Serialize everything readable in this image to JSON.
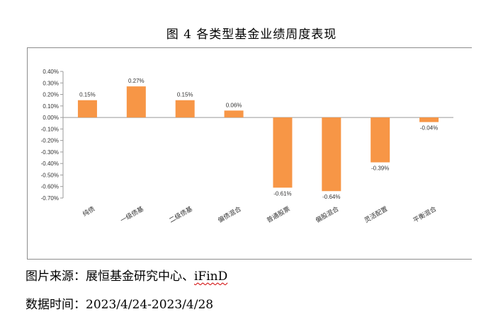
{
  "figure": {
    "title": "图 4  各类型基金业绩周度表现"
  },
  "chart_data": {
    "type": "bar",
    "title": "图 4  各类型基金业绩周度表现",
    "xlabel": "",
    "ylabel": "",
    "categories": [
      "纯债",
      "一级债基",
      "二级债基",
      "偏债混合",
      "普通股票",
      "偏股混合",
      "灵活配置",
      "平衡混合"
    ],
    "values": [
      0.15,
      0.27,
      0.15,
      0.06,
      -0.61,
      -0.64,
      -0.39,
      -0.04
    ],
    "data_labels": [
      "0.15%",
      "0.27%",
      "0.15%",
      "0.06%",
      "-0.61%",
      "-0.64%",
      "-0.39%",
      "-0.04%"
    ],
    "ylim": [
      -0.7,
      0.4
    ],
    "yticks": [
      0.4,
      0.3,
      0.2,
      0.1,
      0.0,
      -0.1,
      -0.2,
      -0.3,
      -0.4,
      -0.5,
      -0.6,
      -0.7
    ],
    "ytick_labels": [
      "0.40%",
      "0.30%",
      "0.20%",
      "0.10%",
      "0.00%",
      "-0.10%",
      "-0.20%",
      "-0.30%",
      "-0.40%",
      "-0.50%",
      "-0.60%",
      "-0.70%"
    ],
    "bar_color": "#F79646",
    "grid": false,
    "legend": "none"
  },
  "footer": {
    "source_label": "图片来源：",
    "source_text": "展恒基金研究中心、",
    "source_brand": "iFinD",
    "date_label": "数据时间：",
    "date_value": "2023/4/24-2023/4/28"
  }
}
